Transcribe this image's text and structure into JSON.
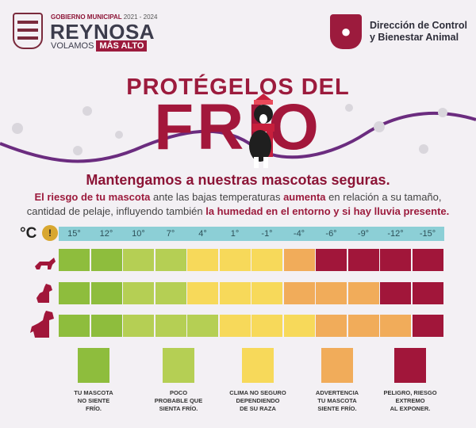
{
  "header": {
    "gov_label": "GOBIERNO MUNICIPAL",
    "gov_years": "2021 - 2024",
    "city": "REYNOSA",
    "slogan_start": "VOLAMOS",
    "slogan_highlight": "MÁS ALTO",
    "dept_line1": "Dirección de Control",
    "dept_line2": "y Bienestar Animal"
  },
  "title": {
    "line1": "PROTÉGELOS DEL",
    "line2": "FRIO"
  },
  "subtitle": "Mantengamos a nuestras mascotas seguras.",
  "body": {
    "b1": "El riesgo de tu mascota",
    "t1": " ante las bajas temperaturas ",
    "b2": "aumenta",
    "t2": " en relación a su tamaño,",
    "t3": "cantidad de pelaje, influyendo también ",
    "b3": "la humedad en el entorno y si hay lluvia presente."
  },
  "unit_label": "°C",
  "temperatures": [
    "15°",
    "12°",
    "10°",
    "7°",
    "4°",
    "1°",
    "-1°",
    "-4°",
    "-6°",
    "-9°",
    "-12°",
    "-15°"
  ],
  "pet_sizes": [
    "small-dog",
    "medium-dog",
    "large-dog"
  ],
  "colors": {
    "green_dark": "#8ebd3d",
    "green_light": "#b5cf54",
    "yellow": "#f7d95a",
    "orange": "#f1ac5a",
    "red": "#a1163a",
    "temp_bar": "#8ccfd6"
  },
  "risk_rows": [
    [
      "green_dark",
      "green_dark",
      "green_light",
      "green_light",
      "yellow",
      "yellow",
      "yellow",
      "orange",
      "red",
      "red",
      "red",
      "red"
    ],
    [
      "green_dark",
      "green_dark",
      "green_light",
      "green_light",
      "yellow",
      "yellow",
      "yellow",
      "orange",
      "orange",
      "orange",
      "red",
      "red"
    ],
    [
      "green_dark",
      "green_dark",
      "green_light",
      "green_light",
      "green_light",
      "yellow",
      "yellow",
      "yellow",
      "orange",
      "orange",
      "orange",
      "red"
    ]
  ],
  "legend": [
    {
      "color": "green_dark",
      "lines": [
        "TU MASCOTA",
        "NO SIENTE",
        "FRÍO."
      ]
    },
    {
      "color": "green_light",
      "lines": [
        "POCO",
        "PROBABLE QUE",
        "SIENTA FRÍO."
      ]
    },
    {
      "color": "yellow",
      "lines": [
        "CLIMA NO SEGURO",
        "DEPENDIENDO",
        "DE SU RAZA"
      ]
    },
    {
      "color": "orange",
      "lines": [
        "ADVERTENCIA",
        "TU MASCOTA",
        "SIENTE FRÍO."
      ]
    },
    {
      "color": "red",
      "lines": [
        "PELIGRO, RIESGO",
        "EXTREMO",
        "AL EXPONER."
      ]
    }
  ]
}
